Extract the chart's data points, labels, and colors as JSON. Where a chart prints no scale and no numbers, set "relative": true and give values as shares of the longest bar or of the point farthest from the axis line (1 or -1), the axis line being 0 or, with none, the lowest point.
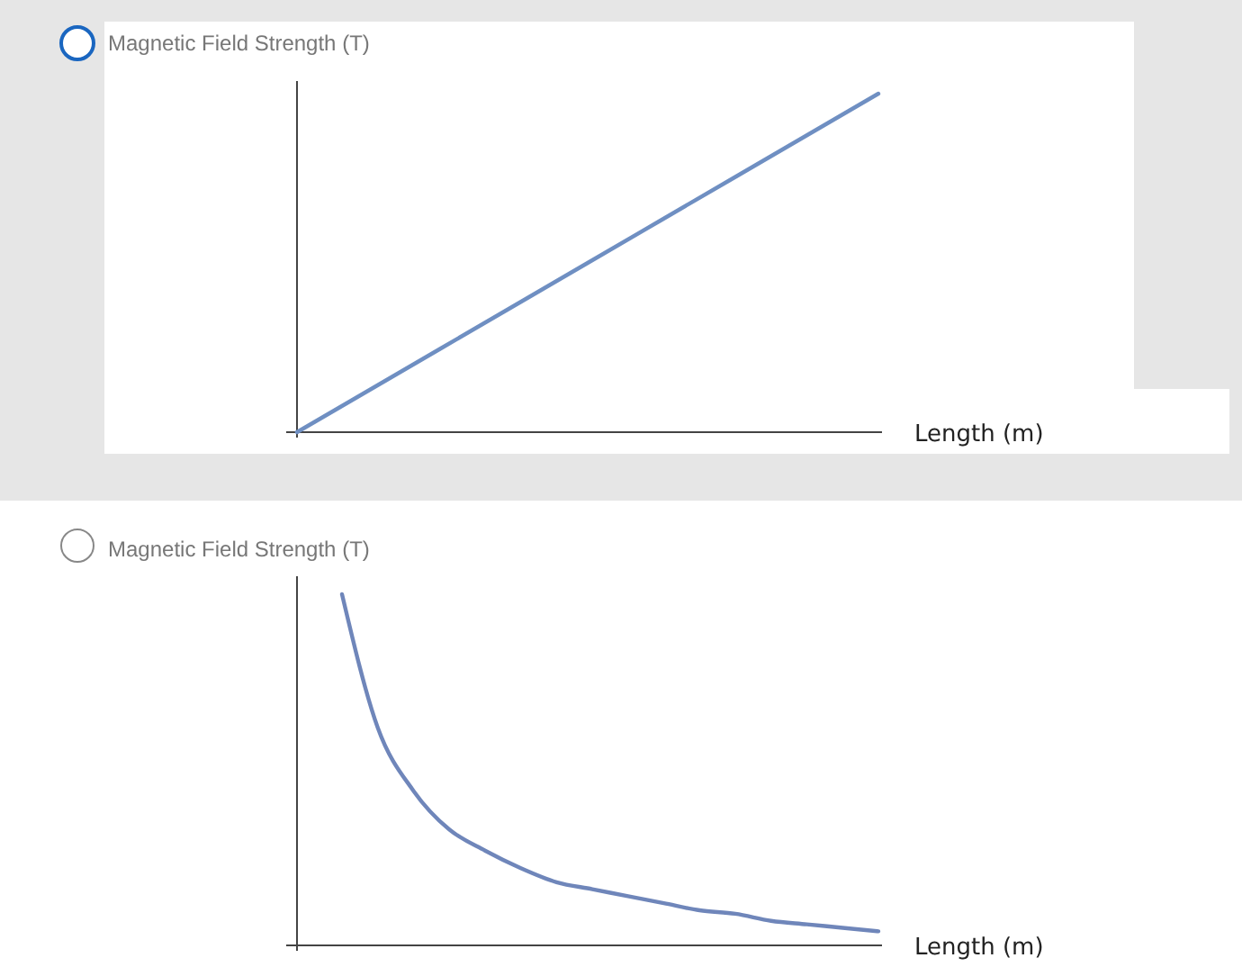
{
  "chart_data": [
    {
      "type": "line",
      "ylabel": "Magnetic Field Strength (T)",
      "xlabel": "Length (m)",
      "relative": true,
      "categories": [
        null,
        null,
        null,
        null,
        null
      ],
      "series": [
        {
          "color": "#6f8fc2",
          "values": [
            0,
            0.25,
            0.5,
            0.75,
            1
          ]
        }
      ]
    },
    {
      "type": "line",
      "ylabel": "Magnetic Field Strength (T)",
      "xlabel": "Length (m)",
      "relative": true,
      "categories": [
        null,
        null,
        null,
        null,
        null,
        null,
        null,
        null,
        null,
        null,
        null,
        null,
        null,
        null,
        null,
        null
      ],
      "series": [
        {
          "color": "#6f86ba",
          "values": [
            1,
            0.62,
            0.44,
            0.33,
            0.27,
            0.22,
            0.18,
            0.16,
            0.14,
            0.12,
            0.1,
            0.09,
            0.07,
            0.06,
            0.05,
            0.04
          ]
        }
      ]
    }
  ]
}
